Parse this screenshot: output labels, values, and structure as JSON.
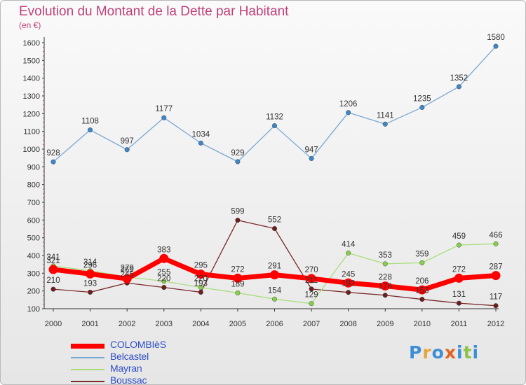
{
  "title": "Evolution du Montant de la Dette par Habitant",
  "subtitle": "(en €)",
  "logo": {
    "text": "Proxiti",
    "letters": [
      {
        "ch": "P",
        "color": "#3c8fd6"
      },
      {
        "ch": "r",
        "color": "#e8a33a"
      },
      {
        "ch": "o",
        "color": "#3c8fd6"
      },
      {
        "ch": "x",
        "color": "#e2631f"
      },
      {
        "ch": "i",
        "color": "#3c8fd6"
      },
      {
        "ch": "t",
        "color": "#8bc34a"
      },
      {
        "ch": "i",
        "color": "#3c8fd6"
      }
    ]
  },
  "chart_data": {
    "type": "line",
    "title": "Evolution du Montant de la Dette par Habitant",
    "ylabel": "(en €)",
    "xlabel": "",
    "x": [
      2000,
      2001,
      2002,
      2003,
      2004,
      2005,
      2006,
      2007,
      2008,
      2009,
      2010,
      2011,
      2012
    ],
    "ylim": [
      100,
      1650
    ],
    "yticks": [
      100,
      200,
      300,
      400,
      500,
      600,
      700,
      800,
      900,
      1000,
      1100,
      1200,
      1300,
      1400,
      1500,
      1600
    ],
    "grid": false,
    "legend_position": "bottom-left",
    "series": [
      {
        "name": "COLOMBIèS",
        "color": "#ff0000",
        "marker": "#ff0000",
        "width": 7,
        "r": 6.5,
        "values": [
          321,
          296,
          269,
          383,
          295,
          272,
          291,
          270,
          245,
          228,
          206,
          272,
          287
        ]
      },
      {
        "name": "Belcastel",
        "color": "#7aa8d4",
        "marker": "#3f86c6",
        "width": 1.3,
        "r": 3.3,
        "values": [
          928,
          1108,
          997,
          1177,
          1034,
          929,
          1132,
          947,
          1206,
          1141,
          1235,
          1352,
          1580
        ]
      },
      {
        "name": "Mayran",
        "color": "#a8df7c",
        "marker": "#86cf4a",
        "width": 1.3,
        "r": 3.3,
        "values": [
          341,
          314,
          279,
          255,
          220,
          189,
          154,
          129,
          414,
          353,
          359,
          459,
          466
        ]
      },
      {
        "name": "Boussac",
        "color": "#7a2a2a",
        "marker": "#6b1f1f",
        "width": 1.3,
        "r": 3.3,
        "values": [
          210,
          193,
          245,
          220,
          193,
          599,
          552,
          211,
          192,
          176,
          153,
          131,
          117
        ]
      }
    ]
  }
}
